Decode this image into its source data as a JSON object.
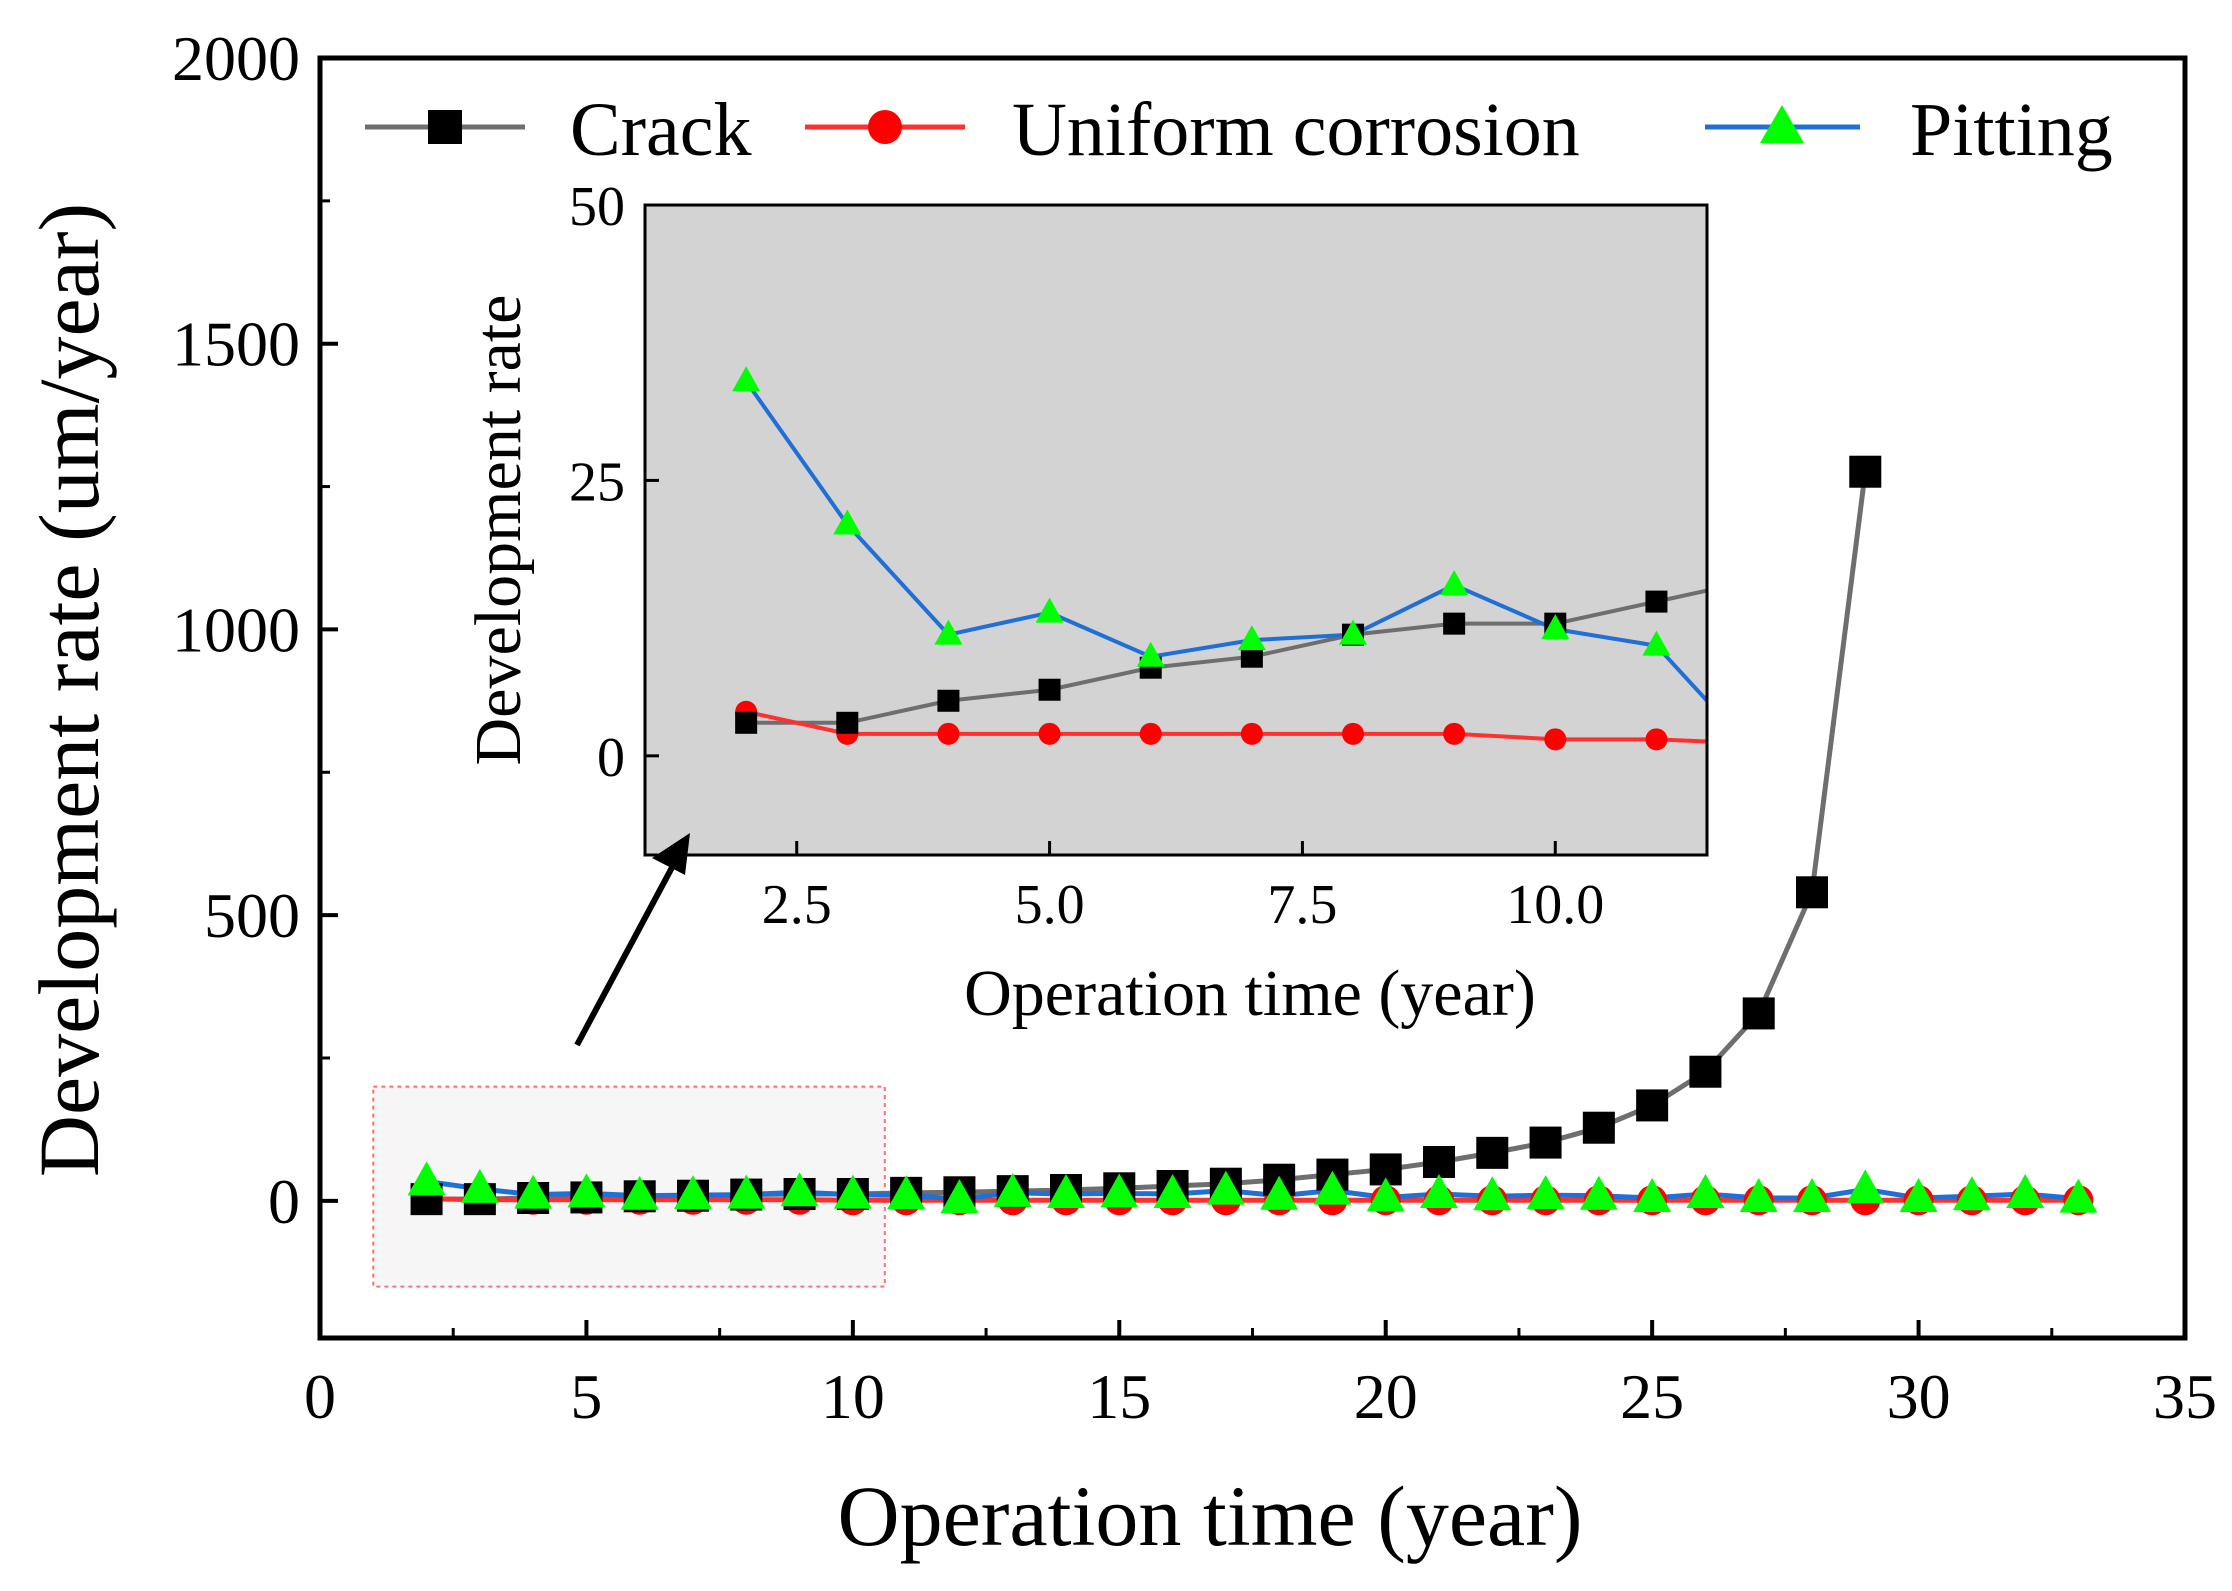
{
  "chart_data": {
    "type": "line",
    "main": {
      "xlabel": "Operation time (year)",
      "ylabel": "Development rate (um/year)",
      "xlim": [
        0,
        35
      ],
      "ylim": [
        -240,
        2000
      ],
      "xticks": [
        "0",
        "5",
        "10",
        "15",
        "20",
        "25",
        "30",
        "35"
      ],
      "yticks": [
        "0",
        "500",
        "1000",
        "1500",
        "2000"
      ],
      "legend_position": "top",
      "x": [
        2,
        3,
        4,
        5,
        6,
        7,
        8,
        9,
        10,
        11,
        12,
        13,
        14,
        15,
        16,
        17,
        18,
        19,
        20,
        21,
        22,
        23,
        24,
        25,
        26,
        27,
        28,
        29,
        30,
        31,
        32,
        33
      ],
      "series": [
        {
          "name": "Crack",
          "line_color": "#6e6e6e",
          "marker_color": "#000000",
          "marker": "square",
          "x": [
            2,
            3,
            4,
            5,
            6,
            7,
            8,
            9,
            10,
            11,
            12,
            13,
            14,
            15,
            16,
            17,
            18,
            19,
            20,
            21,
            22,
            23,
            24,
            25,
            26,
            27,
            28,
            29
          ],
          "values": [
            3,
            3,
            5,
            6,
            8,
            9,
            11,
            12,
            12,
            14,
            15,
            17,
            19,
            22,
            26,
            30,
            37,
            46,
            55,
            68,
            84,
            102,
            128,
            167,
            226,
            328,
            540,
            1276
          ]
        },
        {
          "name": "Uniform corrosion",
          "line_color": "#ff3030",
          "marker_color": "#ff0000",
          "marker": "circle",
          "x": [
            2,
            3,
            4,
            5,
            6,
            7,
            8,
            9,
            10,
            11,
            12,
            13,
            14,
            15,
            16,
            17,
            18,
            19,
            20,
            21,
            22,
            23,
            24,
            25,
            26,
            27,
            28,
            29,
            30,
            31,
            32,
            33
          ],
          "values": [
            4,
            2,
            2,
            2,
            2,
            2,
            2,
            2,
            1,
            1,
            1,
            1,
            1,
            1,
            1,
            1,
            1,
            1,
            1,
            1,
            1,
            1,
            1,
            1,
            1,
            1,
            1,
            1,
            1,
            1,
            1,
            1
          ]
        },
        {
          "name": "Pitting",
          "line_color": "#1f6fd6",
          "marker_color": "#00ff00",
          "marker": "triangle",
          "x": [
            2,
            3,
            4,
            5,
            6,
            7,
            8,
            9,
            10,
            11,
            12,
            13,
            14,
            15,
            16,
            17,
            18,
            19,
            20,
            21,
            22,
            23,
            24,
            25,
            26,
            27,
            28,
            29,
            30,
            31,
            32,
            33
          ],
          "values": [
            34,
            21,
            11,
            13,
            9,
            10,
            11,
            15,
            11,
            10,
            3,
            14,
            12,
            13,
            12,
            18,
            9,
            18,
            6,
            12,
            8,
            10,
            9,
            5,
            12,
            5,
            5,
            20,
            5,
            8,
            12,
            4
          ]
        }
      ]
    },
    "inset": {
      "xlabel": "Operation time (year)",
      "ylabel": "Development rate",
      "xlim": [
        1,
        11.5
      ],
      "ylim": [
        -9,
        50
      ],
      "xticks": [
        "2.5",
        "5.0",
        "7.5",
        "10.0"
      ],
      "yticks": [
        "0",
        "25",
        "50"
      ],
      "background": "#d3d3d3",
      "crack": [
        3,
        3,
        5,
        6,
        8,
        9,
        11,
        12,
        12,
        14,
        15
      ],
      "uniform": [
        4,
        2,
        2,
        2,
        2,
        2,
        2,
        2,
        1.5,
        1.5,
        1.3
      ],
      "pitting": [
        34,
        21,
        11,
        13,
        9,
        10.5,
        11,
        15.5,
        11.5,
        10,
        5
      ],
      "x": [
        2,
        3,
        4,
        5,
        6,
        7,
        8,
        9,
        10,
        11,
        11.5
      ]
    },
    "colors": {
      "zoom_box": "#ff6060",
      "arrow": "#000000"
    }
  }
}
